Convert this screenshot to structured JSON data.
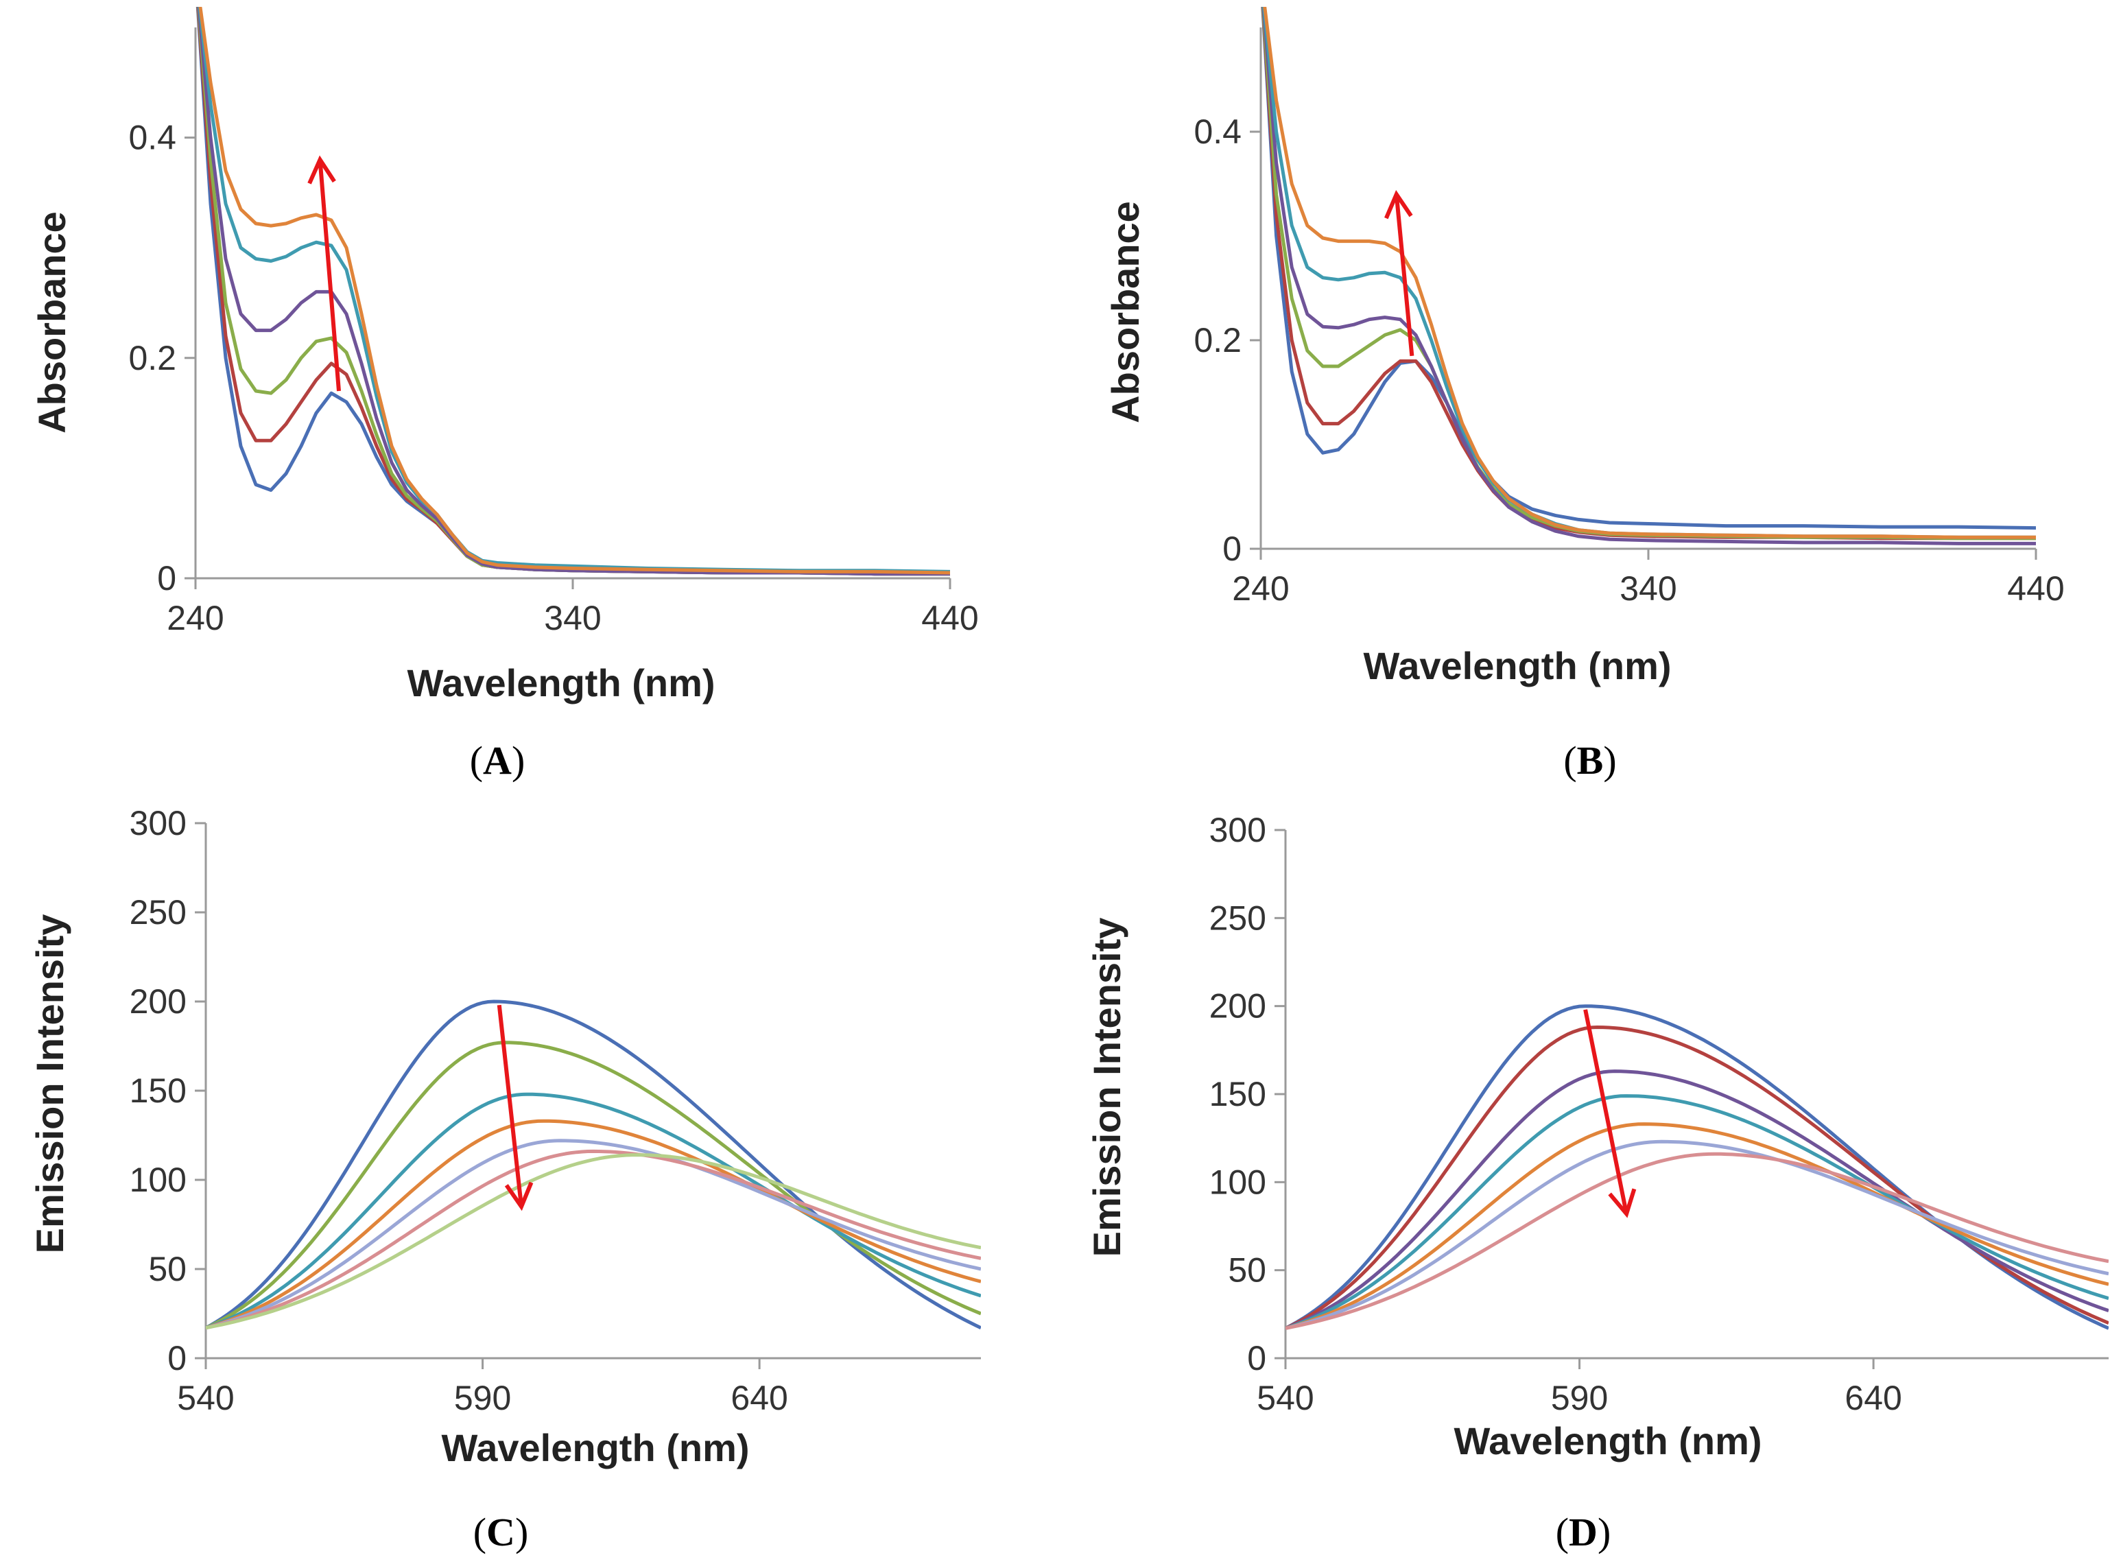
{
  "figure": {
    "panel_labels": [
      "(",
      ")"
    ]
  },
  "chart_data": [
    {
      "type": "line",
      "label_letter": "A",
      "xlabel": "Wavelength (nm)",
      "ylabel": "Absorbance",
      "xlim": [
        240,
        440
      ],
      "ylim": [
        0,
        0.5
      ],
      "xticks": [
        240,
        340,
        440
      ],
      "yticks": [
        0,
        0.2,
        0.4
      ],
      "ytick_labels": [
        "0",
        "0.2",
        "0.4"
      ],
      "annotation": "red arrow pointing up (increasing absorbance)",
      "arrow": {
        "from": [
          278,
          0.17
        ],
        "to": [
          273,
          0.38
        ]
      },
      "series": [
        {
          "name": "s1",
          "color": "#4a6fb5",
          "x": [
            240,
            244,
            248,
            252,
            256,
            260,
            264,
            268,
            272,
            276,
            280,
            284,
            288,
            292,
            296,
            300,
            304,
            308,
            312,
            316,
            320,
            330,
            340,
            360,
            380,
            400,
            420,
            440
          ],
          "y": [
            0.55,
            0.34,
            0.2,
            0.12,
            0.085,
            0.08,
            0.095,
            0.12,
            0.15,
            0.168,
            0.16,
            0.14,
            0.11,
            0.085,
            0.07,
            0.06,
            0.05,
            0.035,
            0.02,
            0.012,
            0.01,
            0.008,
            0.007,
            0.006,
            0.005,
            0.005,
            0.004,
            0.004
          ]
        },
        {
          "name": "s2",
          "color": "#b4413f",
          "x": [
            240,
            244,
            248,
            252,
            256,
            260,
            264,
            268,
            272,
            276,
            280,
            284,
            288,
            292,
            296,
            300,
            304,
            308,
            312,
            316,
            320,
            330,
            340,
            360,
            380,
            400,
            420,
            440
          ],
          "y": [
            0.55,
            0.36,
            0.22,
            0.15,
            0.125,
            0.125,
            0.14,
            0.16,
            0.18,
            0.195,
            0.185,
            0.155,
            0.12,
            0.09,
            0.072,
            0.062,
            0.05,
            0.035,
            0.02,
            0.012,
            0.01,
            0.008,
            0.007,
            0.006,
            0.005,
            0.005,
            0.004,
            0.004
          ]
        },
        {
          "name": "s3",
          "color": "#8aad4a",
          "x": [
            240,
            244,
            248,
            252,
            256,
            260,
            264,
            268,
            272,
            276,
            280,
            284,
            288,
            292,
            296,
            300,
            304,
            308,
            312,
            316,
            320,
            330,
            340,
            360,
            380,
            400,
            420,
            440
          ],
          "y": [
            0.55,
            0.38,
            0.25,
            0.19,
            0.17,
            0.168,
            0.18,
            0.2,
            0.215,
            0.218,
            0.205,
            0.17,
            0.13,
            0.095,
            0.075,
            0.063,
            0.052,
            0.036,
            0.02,
            0.012,
            0.01,
            0.008,
            0.007,
            0.006,
            0.005,
            0.005,
            0.004,
            0.004
          ]
        },
        {
          "name": "s4",
          "color": "#6f5498",
          "x": [
            240,
            244,
            248,
            252,
            256,
            260,
            264,
            268,
            272,
            276,
            280,
            284,
            288,
            292,
            296,
            300,
            304,
            308,
            312,
            316,
            320,
            330,
            340,
            360,
            380,
            400,
            420,
            440
          ],
          "y": [
            0.55,
            0.4,
            0.29,
            0.24,
            0.225,
            0.225,
            0.235,
            0.25,
            0.26,
            0.26,
            0.24,
            0.195,
            0.145,
            0.105,
            0.08,
            0.066,
            0.054,
            0.037,
            0.021,
            0.013,
            0.01,
            0.008,
            0.007,
            0.006,
            0.005,
            0.005,
            0.004,
            0.004
          ]
        },
        {
          "name": "s5",
          "color": "#3f9bb0",
          "x": [
            240,
            244,
            248,
            252,
            256,
            260,
            264,
            268,
            272,
            276,
            280,
            284,
            288,
            292,
            296,
            300,
            304,
            308,
            312,
            316,
            320,
            330,
            340,
            360,
            380,
            400,
            420,
            440
          ],
          "y": [
            0.55,
            0.43,
            0.34,
            0.3,
            0.29,
            0.288,
            0.292,
            0.3,
            0.305,
            0.302,
            0.28,
            0.225,
            0.165,
            0.115,
            0.087,
            0.07,
            0.058,
            0.04,
            0.024,
            0.016,
            0.014,
            0.012,
            0.011,
            0.009,
            0.008,
            0.007,
            0.007,
            0.006
          ]
        },
        {
          "name": "s6",
          "color": "#e0843a",
          "x": [
            240,
            244,
            248,
            252,
            256,
            260,
            264,
            268,
            272,
            276,
            280,
            284,
            288,
            292,
            296,
            300,
            304,
            308,
            312,
            316,
            320,
            330,
            340,
            360,
            380,
            400,
            420,
            440
          ],
          "y": [
            0.55,
            0.45,
            0.37,
            0.335,
            0.322,
            0.32,
            0.322,
            0.327,
            0.33,
            0.325,
            0.3,
            0.24,
            0.175,
            0.12,
            0.09,
            0.072,
            0.058,
            0.04,
            0.023,
            0.015,
            0.012,
            0.01,
            0.009,
            0.008,
            0.007,
            0.006,
            0.006,
            0.005
          ]
        }
      ]
    },
    {
      "type": "line",
      "label_letter": "B",
      "xlabel": "Wavelength (nm)",
      "ylabel": "Absorbance",
      "xlim": [
        240,
        440
      ],
      "ylim": [
        0,
        0.5
      ],
      "xticks": [
        240,
        340,
        440
      ],
      "yticks": [
        0,
        0.2,
        0.4
      ],
      "ytick_labels": [
        "0",
        "0.2",
        "0.4"
      ],
      "annotation": "red arrow pointing up (increasing absorbance)",
      "arrow": {
        "from": [
          279,
          0.185
        ],
        "to": [
          275,
          0.34
        ]
      },
      "series": [
        {
          "name": "s1",
          "color": "#4a6fb5",
          "x": [
            240,
            244,
            248,
            252,
            256,
            260,
            264,
            268,
            272,
            276,
            280,
            284,
            288,
            292,
            296,
            300,
            304,
            310,
            316,
            322,
            330,
            340,
            360,
            380,
            400,
            420,
            440
          ],
          "y": [
            0.55,
            0.3,
            0.17,
            0.11,
            0.092,
            0.095,
            0.11,
            0.135,
            0.16,
            0.178,
            0.18,
            0.165,
            0.14,
            0.11,
            0.085,
            0.065,
            0.05,
            0.038,
            0.032,
            0.028,
            0.025,
            0.024,
            0.022,
            0.022,
            0.021,
            0.021,
            0.02
          ]
        },
        {
          "name": "s2",
          "color": "#b4413f",
          "x": [
            240,
            244,
            248,
            252,
            256,
            260,
            264,
            268,
            272,
            276,
            280,
            284,
            288,
            292,
            296,
            300,
            304,
            310,
            316,
            322,
            330,
            340,
            360,
            380,
            400,
            420,
            440
          ],
          "y": [
            0.55,
            0.32,
            0.2,
            0.14,
            0.12,
            0.12,
            0.132,
            0.15,
            0.168,
            0.18,
            0.18,
            0.16,
            0.13,
            0.1,
            0.075,
            0.055,
            0.04,
            0.028,
            0.02,
            0.016,
            0.013,
            0.012,
            0.011,
            0.011,
            0.01,
            0.01,
            0.01
          ]
        },
        {
          "name": "s3",
          "color": "#8aad4a",
          "x": [
            240,
            244,
            248,
            252,
            256,
            260,
            264,
            268,
            272,
            276,
            280,
            284,
            288,
            292,
            296,
            300,
            304,
            310,
            316,
            322,
            330,
            340,
            360,
            380,
            400,
            420,
            440
          ],
          "y": [
            0.55,
            0.34,
            0.24,
            0.19,
            0.175,
            0.175,
            0.185,
            0.195,
            0.205,
            0.21,
            0.2,
            0.175,
            0.14,
            0.105,
            0.078,
            0.058,
            0.043,
            0.03,
            0.022,
            0.017,
            0.014,
            0.013,
            0.012,
            0.011,
            0.011,
            0.01,
            0.01
          ]
        },
        {
          "name": "s4",
          "color": "#6f5498",
          "x": [
            240,
            244,
            248,
            252,
            256,
            260,
            264,
            268,
            272,
            276,
            280,
            284,
            288,
            292,
            296,
            300,
            304,
            310,
            316,
            322,
            330,
            340,
            360,
            380,
            400,
            420,
            440
          ],
          "y": [
            0.55,
            0.37,
            0.27,
            0.225,
            0.213,
            0.212,
            0.215,
            0.22,
            0.222,
            0.22,
            0.205,
            0.175,
            0.14,
            0.105,
            0.077,
            0.056,
            0.04,
            0.026,
            0.017,
            0.012,
            0.009,
            0.008,
            0.007,
            0.006,
            0.006,
            0.005,
            0.005
          ]
        },
        {
          "name": "s5",
          "color": "#3f9bb0",
          "x": [
            240,
            244,
            248,
            252,
            256,
            260,
            264,
            268,
            272,
            276,
            280,
            284,
            288,
            292,
            296,
            300,
            304,
            310,
            316,
            322,
            330,
            340,
            360,
            380,
            400,
            420,
            440
          ],
          "y": [
            0.55,
            0.4,
            0.31,
            0.27,
            0.26,
            0.258,
            0.26,
            0.264,
            0.265,
            0.26,
            0.24,
            0.2,
            0.155,
            0.115,
            0.085,
            0.063,
            0.047,
            0.033,
            0.024,
            0.018,
            0.015,
            0.014,
            0.013,
            0.012,
            0.012,
            0.011,
            0.011
          ]
        },
        {
          "name": "s6",
          "color": "#e0843a",
          "x": [
            240,
            244,
            248,
            252,
            256,
            260,
            264,
            268,
            272,
            276,
            280,
            284,
            288,
            292,
            296,
            300,
            304,
            310,
            316,
            322,
            330,
            340,
            360,
            380,
            400,
            420,
            440
          ],
          "y": [
            0.55,
            0.43,
            0.35,
            0.31,
            0.298,
            0.295,
            0.295,
            0.295,
            0.293,
            0.285,
            0.26,
            0.215,
            0.165,
            0.12,
            0.088,
            0.065,
            0.048,
            0.033,
            0.023,
            0.018,
            0.015,
            0.014,
            0.013,
            0.012,
            0.012,
            0.011,
            0.011
          ]
        }
      ]
    },
    {
      "type": "line",
      "label_letter": "C",
      "xlabel": "Wavelength (nm)",
      "ylabel": "Emission Intensity",
      "xlim": [
        540,
        680
      ],
      "ylim": [
        0,
        300
      ],
      "xticks": [
        540,
        590,
        640
      ],
      "yticks": [
        0,
        50,
        100,
        150,
        200,
        250,
        300
      ],
      "ytick_labels": [
        "0",
        "50",
        "100",
        "150",
        "200",
        "250",
        "300"
      ],
      "annotation": "red arrow pointing down (decreasing emission)",
      "arrow": {
        "from": [
          593,
          198
        ],
        "to": [
          597,
          85
        ]
      },
      "series": [
        {
          "name": "s1",
          "color": "#4a6fb5",
          "peak_x": 592,
          "peak_y": 200,
          "start_y": 17,
          "end_y": 17
        },
        {
          "name": "s2",
          "color": "#8aad4a",
          "peak_x": 594,
          "peak_y": 177,
          "start_y": 17,
          "end_y": 25
        },
        {
          "name": "s3",
          "color": "#3f9bb0",
          "peak_x": 598,
          "peak_y": 148,
          "start_y": 17,
          "end_y": 35
        },
        {
          "name": "s4",
          "color": "#e0843a",
          "peak_x": 601,
          "peak_y": 133,
          "start_y": 17,
          "end_y": 43
        },
        {
          "name": "s5",
          "color": "#9aa6d6",
          "peak_x": 604,
          "peak_y": 122,
          "start_y": 17,
          "end_y": 50
        },
        {
          "name": "s6",
          "color": "#d88e91",
          "peak_x": 610,
          "peak_y": 116,
          "start_y": 17,
          "end_y": 56
        },
        {
          "name": "s7",
          "color": "#b5d08a",
          "peak_x": 618,
          "peak_y": 114,
          "start_y": 17,
          "end_y": 62
        }
      ]
    },
    {
      "type": "line",
      "label_letter": "D",
      "xlabel": "Wavelength (nm)",
      "ylabel": "Emission Intensity",
      "xlim": [
        540,
        680
      ],
      "ylim": [
        0,
        300
      ],
      "xticks": [
        540,
        590,
        640
      ],
      "yticks": [
        0,
        50,
        100,
        150,
        200,
        250,
        300
      ],
      "ytick_labels": [
        "0",
        "50",
        "100",
        "150",
        "200",
        "250",
        "300"
      ],
      "annotation": "red arrow pointing down (decreasing emission)",
      "arrow": {
        "from": [
          591,
          198
        ],
        "to": [
          598,
          82
        ]
      },
      "series": [
        {
          "name": "s1",
          "color": "#4a6fb5",
          "peak_x": 591,
          "peak_y": 200,
          "start_y": 17,
          "end_y": 17
        },
        {
          "name": "s2",
          "color": "#b4413f",
          "peak_x": 593,
          "peak_y": 188,
          "start_y": 17,
          "end_y": 20
        },
        {
          "name": "s3",
          "color": "#6f5498",
          "peak_x": 596,
          "peak_y": 163,
          "start_y": 17,
          "end_y": 27
        },
        {
          "name": "s4",
          "color": "#3f9bb0",
          "peak_x": 598,
          "peak_y": 149,
          "start_y": 17,
          "end_y": 34
        },
        {
          "name": "s5",
          "color": "#e0843a",
          "peak_x": 601,
          "peak_y": 133,
          "start_y": 17,
          "end_y": 42
        },
        {
          "name": "s6",
          "color": "#9aa6d6",
          "peak_x": 604,
          "peak_y": 123,
          "start_y": 17,
          "end_y": 48
        },
        {
          "name": "s7",
          "color": "#d88e91",
          "peak_x": 613,
          "peak_y": 116,
          "start_y": 17,
          "end_y": 55
        }
      ]
    }
  ]
}
